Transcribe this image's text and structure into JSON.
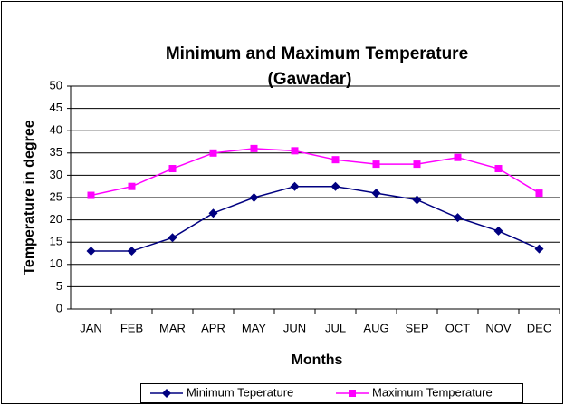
{
  "chart_data": {
    "type": "line",
    "title": [
      "Minimum and Maximum Temperature",
      "(Gawadar)"
    ],
    "x_label": "Months",
    "y_label": "Temperature in degree",
    "categories": [
      "JAN",
      "FEB",
      "MAR",
      "APR",
      "MAY",
      "JUN",
      "JUL",
      "AUG",
      "SEP",
      "OCT",
      "NOV",
      "DEC"
    ],
    "series": [
      {
        "name": "Minimum Teperature",
        "color": "#000080",
        "marker": "diamond",
        "values": [
          13,
          13,
          16,
          21.5,
          25,
          27.5,
          27.5,
          26,
          24.5,
          20.5,
          17.5,
          13.5
        ]
      },
      {
        "name": "Maximum Temperature",
        "color": "#ff00ff",
        "marker": "square",
        "values": [
          25.5,
          27.5,
          31.5,
          35,
          36,
          35.5,
          33.5,
          32.5,
          32.5,
          34,
          31.5,
          26
        ]
      }
    ],
    "ylim": [
      0,
      50
    ],
    "yticks": [
      0,
      5,
      10,
      15,
      20,
      25,
      30,
      35,
      40,
      45,
      50
    ],
    "grid": true,
    "legend": "bottom"
  }
}
